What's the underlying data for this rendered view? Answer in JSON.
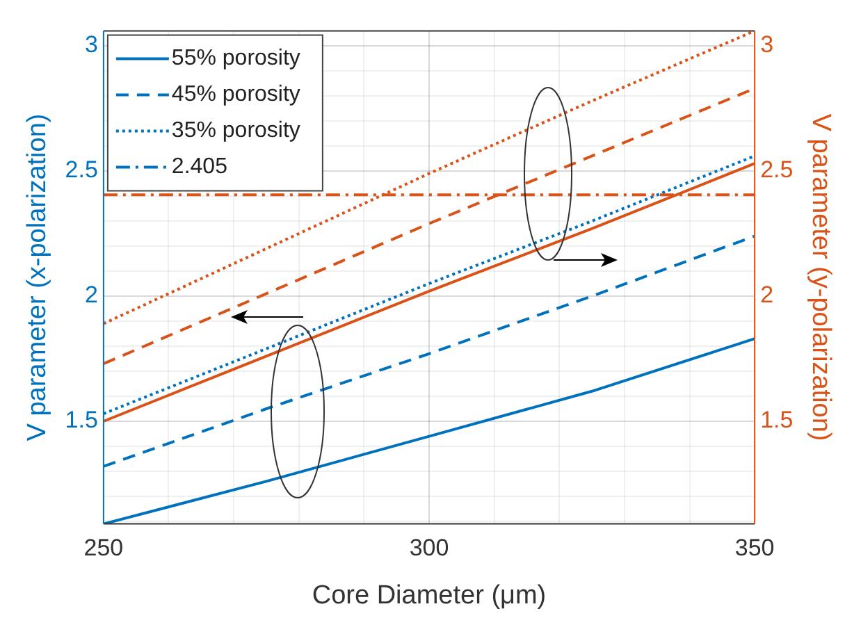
{
  "chart_data": {
    "type": "line",
    "xlabel": "Core Diameter (μm)",
    "ylabel": "V parameter (x-polarization)",
    "y2label": "V parameter (y-polarization)",
    "x": [
      250,
      275,
      300,
      325,
      350
    ],
    "series": [
      {
        "name": "55% porosity",
        "color": "#0072bd",
        "line_style": "solid",
        "values": [
          1.09,
          1.26,
          1.44,
          1.62,
          1.83
        ]
      },
      {
        "name": "45% porosity",
        "color": "#0072bd",
        "line_style": "dashed",
        "values": [
          1.32,
          1.55,
          1.77,
          2.0,
          2.24
        ]
      },
      {
        "name": "35% porosity",
        "color": "#0072bd",
        "line_style": "dotted",
        "values": [
          1.53,
          1.79,
          2.05,
          2.3,
          2.56
        ]
      },
      {
        "name": "2.405",
        "color": "#0072bd",
        "line_style": "dashdot",
        "values": [
          null,
          null,
          null,
          null,
          null
        ]
      },
      {
        "color": "#d95319",
        "axis": "y2",
        "line_style": "solid",
        "values": [
          1.5,
          1.76,
          2.02,
          2.27,
          2.53
        ]
      },
      {
        "color": "#d95319",
        "axis": "y2",
        "line_style": "dashed",
        "values": [
          1.73,
          2.01,
          2.29,
          2.56,
          2.83
        ]
      },
      {
        "color": "#d95319",
        "axis": "y2",
        "line_style": "dotted",
        "values": [
          1.89,
          2.19,
          2.49,
          2.78,
          3.06
        ]
      },
      {
        "color": "#d95319",
        "axis": "y2",
        "line_style": "dashdot",
        "values": [
          2.405,
          2.405,
          2.405,
          2.405,
          2.405
        ]
      }
    ],
    "xlim": [
      250,
      350
    ],
    "xticks": [
      250,
      {
        "value": 260,
        "label": null
      },
      {
        "value": 270,
        "label": null
      },
      {
        "value": 280,
        "label": null
      },
      {
        "value": 290,
        "label": null
      },
      300,
      {
        "value": 310,
        "label": null
      },
      {
        "value": 320,
        "label": null
      },
      {
        "value": 330,
        "label": null
      },
      {
        "value": 340,
        "label": null
      },
      350
    ],
    "ylim": [
      1.09,
      3.06
    ],
    "yticks": [
      {
        "value": 1.1,
        "label": null
      },
      {
        "value": 1.2,
        "label": null
      },
      {
        "value": 1.3,
        "label": null
      },
      {
        "value": 1.4,
        "label": null
      },
      1.5,
      {
        "value": 1.6,
        "label": null
      },
      {
        "value": 1.7,
        "label": null
      },
      {
        "value": 1.8,
        "label": null
      },
      {
        "value": 1.9,
        "label": null
      },
      2,
      {
        "value": 2.1,
        "label": null
      },
      {
        "value": 2.2,
        "label": null
      },
      {
        "value": 2.3,
        "label": null
      },
      {
        "value": 2.4,
        "label": null
      },
      2.5,
      {
        "value": 2.6,
        "label": null
      },
      {
        "value": 2.7,
        "label": null
      },
      {
        "value": 2.8,
        "label": null
      },
      {
        "value": 2.9,
        "label": null
      },
      3
    ],
    "y2lim": [
      1.09,
      3.06
    ],
    "y2ticks": [
      1.5,
      2,
      2.5,
      3
    ],
    "grid": true,
    "legend": "top left",
    "marker": "none"
  }
}
